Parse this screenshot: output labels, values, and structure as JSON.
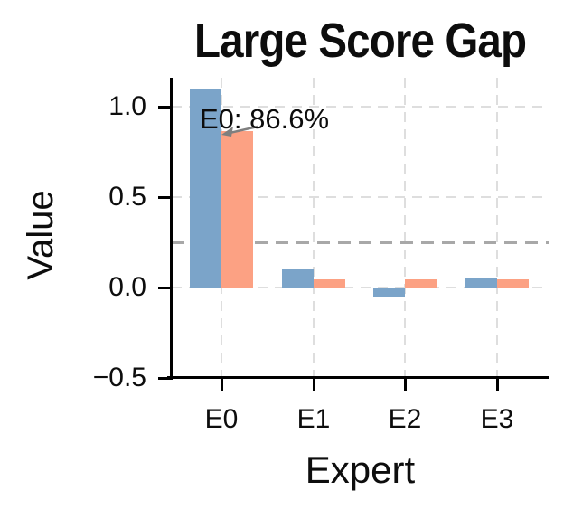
{
  "chart_data": {
    "type": "bar",
    "title": "Large Score Gap",
    "xlabel": "Expert",
    "ylabel": "Value",
    "categories": [
      "E0",
      "E1",
      "E2",
      "E3"
    ],
    "series": [
      {
        "name": "blue",
        "color": "#7ba4c9",
        "values": [
          1.1,
          0.1,
          -0.05,
          0.055
        ]
      },
      {
        "name": "orange",
        "color": "#fca183",
        "values": [
          0.866,
          0.045,
          0.045,
          0.045
        ]
      }
    ],
    "ylim": [
      -0.5,
      1.16
    ],
    "yticks": {
      "values": [
        1.0,
        0.5,
        0.0,
        -0.5
      ],
      "labels": [
        "1.0",
        "0.5",
        "0.0",
        "−0.5"
      ]
    },
    "grid": {
      "show": true,
      "style": "dashed",
      "color": "#dedede"
    },
    "reference_line": {
      "value": 0.25,
      "style": "dashed",
      "color": "#a8a8a8"
    },
    "annotation": {
      "text": "E0: 86.6%",
      "arrow_color": "#7f7f7f",
      "points_to": "top of orange bar at E0"
    },
    "legend": "none",
    "axis_color": "#000000",
    "background": "#ffffff"
  }
}
